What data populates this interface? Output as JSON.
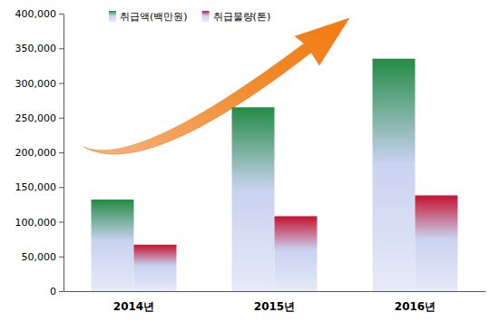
{
  "chart_data": {
    "type": "bar",
    "categories": [
      "2014년",
      "2015년",
      "2016년"
    ],
    "series": [
      {
        "name": "취급액(백만원)",
        "color": "#238b45",
        "values": [
          132000,
          265000,
          335000
        ]
      },
      {
        "name": "취급물량(톤)",
        "color": "#c4122f",
        "values": [
          67000,
          108000,
          138000
        ]
      }
    ],
    "ylim": [
      0,
      400000
    ],
    "yticks": [
      0,
      {
        "value": 50000,
        "label": "50,000"
      },
      {
        "value": 100000,
        "label": "100,000"
      },
      {
        "value": 150000,
        "label": "150,000"
      },
      {
        "value": 200000,
        "label": "200,000"
      },
      {
        "value": 250000,
        "label": "250,000"
      },
      {
        "value": 300000,
        "label": "300,000"
      },
      {
        "value": 350000,
        "label": "350,000"
      },
      {
        "value": 400000,
        "label": "400,000"
      }
    ],
    "grid": false,
    "legend": "top"
  }
}
